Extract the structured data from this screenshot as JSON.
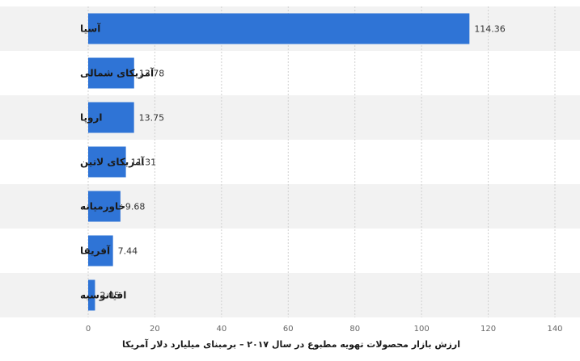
{
  "chart_data": {
    "type": "bar",
    "orientation": "horizontal",
    "categories": [
      "آسیا",
      "آمریکای شمالی",
      "اروپا",
      "آمریکای لاتین",
      "خاورمیانه",
      "آفریقا",
      "اقیانوسیه"
    ],
    "values": [
      114.36,
      13.78,
      13.75,
      11.31,
      9.68,
      7.44,
      2.05
    ],
    "value_labels": [
      "114.36",
      "13.78",
      "13.75",
      "11.31",
      "9.68",
      "7.44",
      "2.05"
    ],
    "title": "",
    "xlabel": "ارزش بازار محصولات تهویه مطبوع در سال ۲۰۱۷ – برمبنای میلیارد دلار آمریکا",
    "ylabel": "",
    "xlim": [
      0,
      140
    ],
    "x_ticks": [
      0,
      20,
      40,
      60,
      80,
      100,
      120,
      140
    ],
    "x_tick_labels": [
      "0",
      "20",
      "40",
      "60",
      "80",
      "100",
      "120",
      "140"
    ],
    "grid": "vertical dashed",
    "legend": "none",
    "colors": {
      "bar": "#2f74d6",
      "band": "#f2f2f2",
      "grid": "#d0d0d0"
    }
  }
}
